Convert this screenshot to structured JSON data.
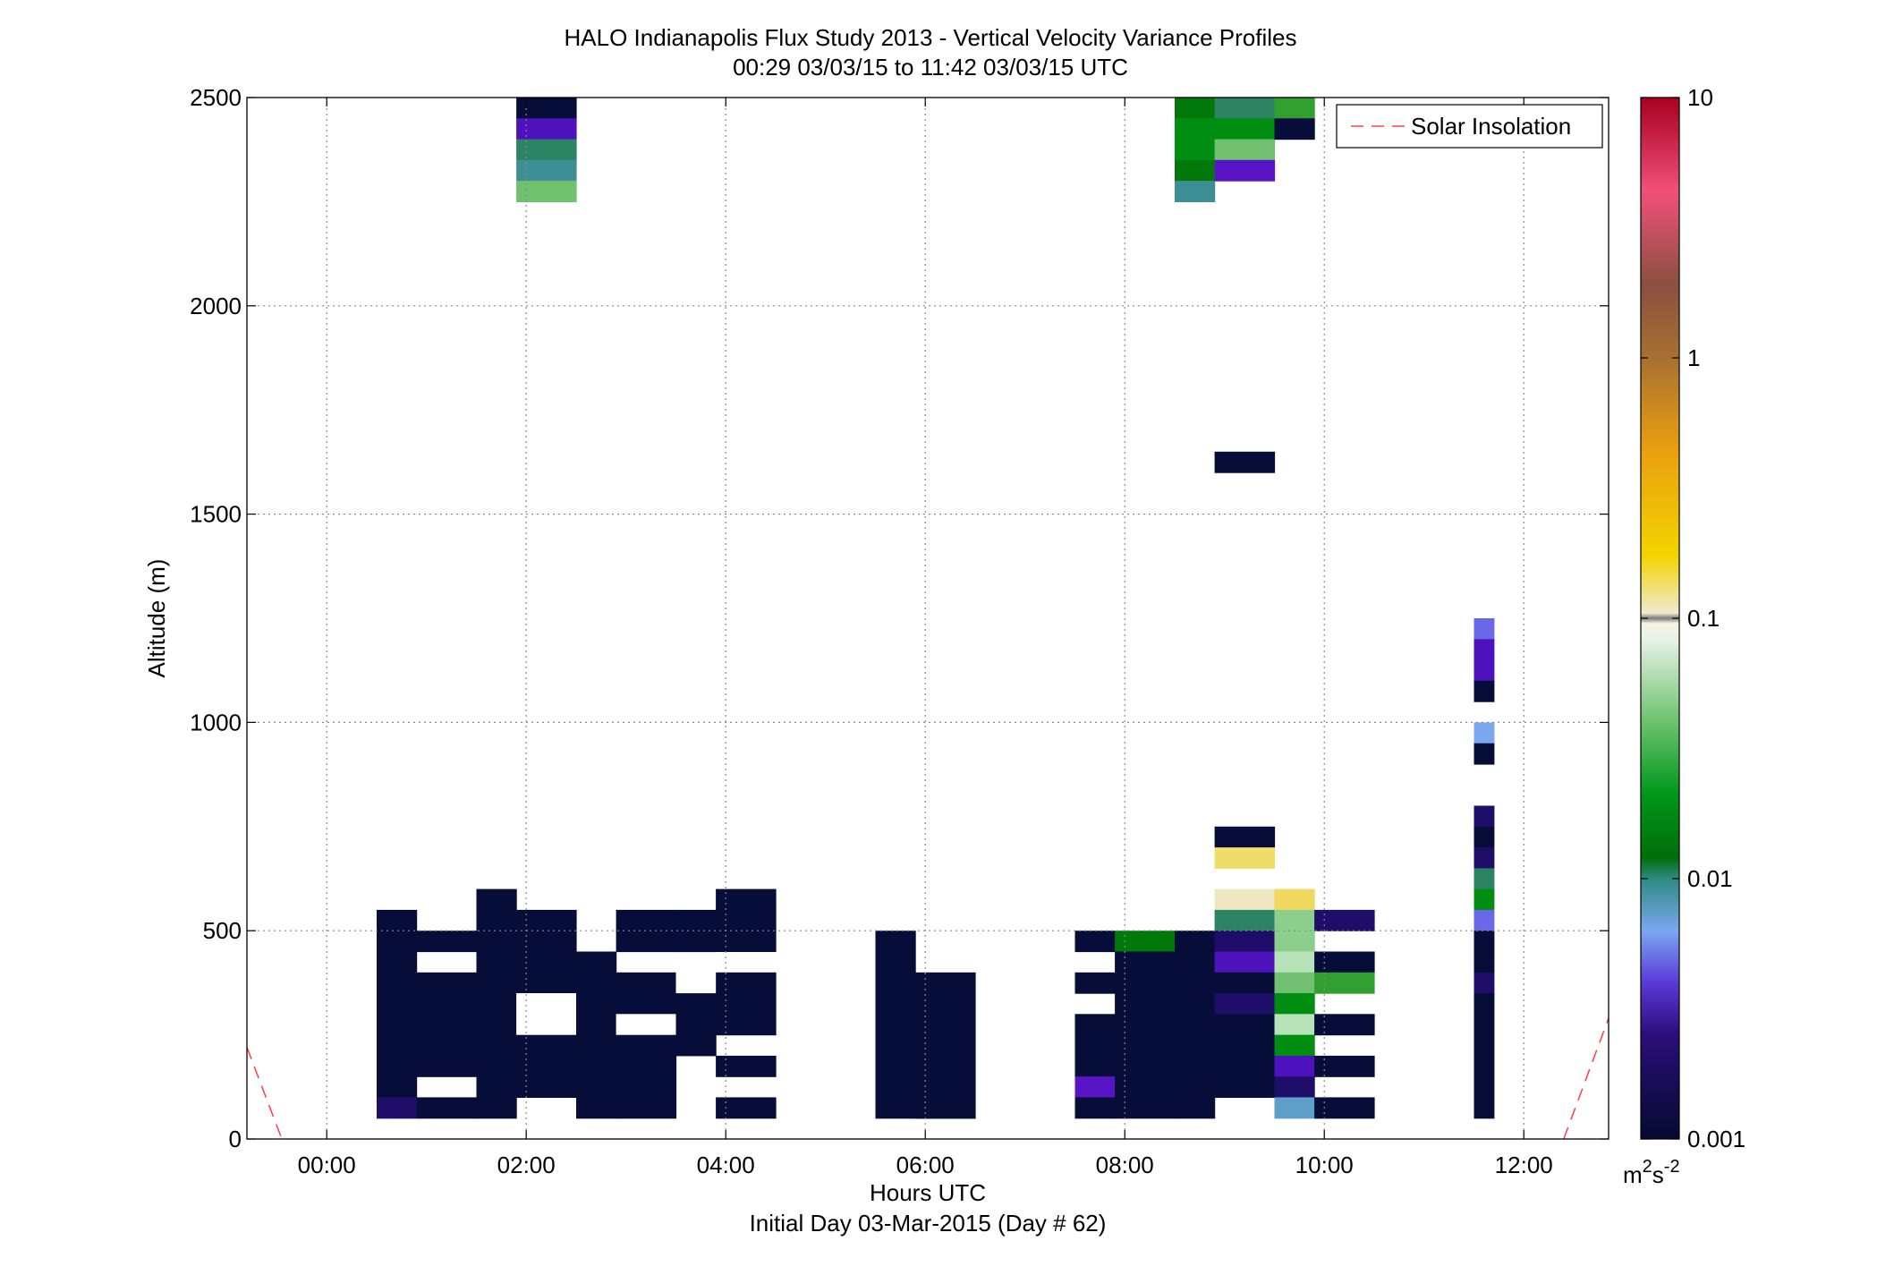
{
  "chart_data": {
    "type": "heatmap",
    "title": "HALO Indianapolis Flux Study 2013 - Vertical Velocity Variance Profiles",
    "subtitle": "00:29 03/03/15 to 11:42 03/03/15  UTC",
    "xlabel": "Hours UTC",
    "xlabel2": "Initial Day 03-Mar-2015 (Day # 62)",
    "ylabel": "Altitude (m)",
    "xlim": [
      -0.8,
      12.85
    ],
    "ylim": [
      0,
      2500
    ],
    "x_ticks": [
      {
        "value": 0,
        "label": "00:00"
      },
      {
        "value": 2,
        "label": "02:00"
      },
      {
        "value": 4,
        "label": "04:00"
      },
      {
        "value": 6,
        "label": "06:00"
      },
      {
        "value": 8,
        "label": "08:00"
      },
      {
        "value": 10,
        "label": "10:00"
      },
      {
        "value": 12,
        "label": "12:00"
      }
    ],
    "y_ticks": [
      {
        "value": 0,
        "label": "0"
      },
      {
        "value": 500,
        "label": "500"
      },
      {
        "value": 1000,
        "label": "1000"
      },
      {
        "value": 1500,
        "label": "1500"
      },
      {
        "value": 2000,
        "label": "2000"
      },
      {
        "value": 2500,
        "label": "2500"
      }
    ],
    "grid": true,
    "legend": {
      "position": "top-right",
      "entries": [
        {
          "name": "Solar Insolation",
          "color": "#ff4040",
          "style": "dashed"
        }
      ]
    },
    "colorbar": {
      "scale": "log",
      "range": [
        0.001,
        10
      ],
      "ticks": [
        {
          "value": 0.001,
          "label": "0.001"
        },
        {
          "value": 0.01,
          "label": "0.01"
        },
        {
          "value": 0.1,
          "label": "0.1"
        },
        {
          "value": 1,
          "label": "1"
        },
        {
          "value": 10,
          "label": "10"
        }
      ],
      "unit": "m",
      "unit_sup1": "2",
      "unit_mid": "s",
      "unit_sup2": "-2"
    },
    "cell_height_m": 50,
    "colors": {
      "navy": "#050d38",
      "indigo": "#1e0e6a",
      "violet": "#4e12bd",
      "purple": "#5a14c8",
      "periwinkle": "#6a68e8",
      "lightblue": "#7ba6f0",
      "steelblue": "#5e9ec8",
      "teal": "#3e8e96",
      "seagreen": "#2c8464",
      "darkgreen": "#00780a",
      "green": "#008e12",
      "midgreen": "#31a031",
      "lightgreen": "#70c070",
      "palegreen": "#8ccf8c",
      "mint": "#b8e2b8",
      "cream": "#eee8c0",
      "yellow": "#f0dc68",
      "gold": "#f0d860"
    },
    "cells": [
      {
        "x": [
          1.9,
          2.5
        ],
        "y": [
          2450,
          2500
        ],
        "c": "navy"
      },
      {
        "x": [
          1.9,
          2.5
        ],
        "y": [
          2400,
          2450
        ],
        "c": "violet"
      },
      {
        "x": [
          1.9,
          2.5
        ],
        "y": [
          2350,
          2400
        ],
        "c": "seagreen"
      },
      {
        "x": [
          1.9,
          2.5
        ],
        "y": [
          2300,
          2350
        ],
        "c": "teal"
      },
      {
        "x": [
          1.9,
          2.5
        ],
        "y": [
          2250,
          2300
        ],
        "c": "lightgreen"
      },
      {
        "x": [
          8.5,
          8.9
        ],
        "y": [
          2450,
          2500
        ],
        "c": "darkgreen"
      },
      {
        "x": [
          8.5,
          8.9
        ],
        "y": [
          2400,
          2450
        ],
        "c": "green"
      },
      {
        "x": [
          8.5,
          8.9
        ],
        "y": [
          2350,
          2400
        ],
        "c": "green"
      },
      {
        "x": [
          8.5,
          8.9
        ],
        "y": [
          2300,
          2350
        ],
        "c": "darkgreen"
      },
      {
        "x": [
          8.5,
          8.9
        ],
        "y": [
          2250,
          2300
        ],
        "c": "teal"
      },
      {
        "x": [
          8.9,
          9.5
        ],
        "y": [
          2450,
          2500
        ],
        "c": "seagreen"
      },
      {
        "x": [
          8.9,
          9.5
        ],
        "y": [
          2400,
          2450
        ],
        "c": "green"
      },
      {
        "x": [
          8.9,
          9.5
        ],
        "y": [
          2350,
          2400
        ],
        "c": "lightgreen"
      },
      {
        "x": [
          8.9,
          9.5
        ],
        "y": [
          2300,
          2350
        ],
        "c": "purple"
      },
      {
        "x": [
          9.5,
          9.9
        ],
        "y": [
          2450,
          2500
        ],
        "c": "midgreen"
      },
      {
        "x": [
          9.5,
          9.9
        ],
        "y": [
          2400,
          2450
        ],
        "c": "navy"
      },
      {
        "x": [
          8.9,
          9.5
        ],
        "y": [
          1600,
          1650
        ],
        "c": "navy"
      },
      {
        "x": [
          11.5,
          11.7
        ],
        "y": [
          1200,
          1250
        ],
        "c": "periwinkle"
      },
      {
        "x": [
          11.5,
          11.7
        ],
        "y": [
          1100,
          1200
        ],
        "c": "violet"
      },
      {
        "x": [
          11.5,
          11.7
        ],
        "y": [
          1050,
          1100
        ],
        "c": "navy"
      },
      {
        "x": [
          11.5,
          11.7
        ],
        "y": [
          950,
          1000
        ],
        "c": "lightblue"
      },
      {
        "x": [
          11.5,
          11.7
        ],
        "y": [
          900,
          950
        ],
        "c": "navy"
      },
      {
        "x": [
          11.5,
          11.7
        ],
        "y": [
          750,
          800
        ],
        "c": "indigo"
      },
      {
        "x": [
          11.5,
          11.7
        ],
        "y": [
          700,
          750
        ],
        "c": "navy"
      },
      {
        "x": [
          11.5,
          11.7
        ],
        "y": [
          650,
          700
        ],
        "c": "indigo"
      },
      {
        "x": [
          11.5,
          11.7
        ],
        "y": [
          600,
          650
        ],
        "c": "seagreen"
      },
      {
        "x": [
          11.5,
          11.7
        ],
        "y": [
          550,
          600
        ],
        "c": "green"
      },
      {
        "x": [
          11.5,
          11.7
        ],
        "y": [
          500,
          550
        ],
        "c": "periwinkle"
      },
      {
        "x": [
          11.5,
          11.7
        ],
        "y": [
          400,
          500
        ],
        "c": "navy"
      },
      {
        "x": [
          11.5,
          11.7
        ],
        "y": [
          350,
          400
        ],
        "c": "indigo"
      },
      {
        "x": [
          11.5,
          11.7
        ],
        "y": [
          50,
          350
        ],
        "c": "navy"
      },
      {
        "x": [
          0.5,
          0.9
        ],
        "y": [
          100,
          550
        ],
        "c": "navy"
      },
      {
        "x": [
          0.5,
          0.9
        ],
        "y": [
          50,
          100
        ],
        "c": "indigo"
      },
      {
        "x": [
          0.9,
          1.5
        ],
        "y": [
          450,
          500
        ],
        "c": "navy"
      },
      {
        "x": [
          0.9,
          1.5
        ],
        "y": [
          150,
          400
        ],
        "c": "navy"
      },
      {
        "x": [
          0.9,
          1.5
        ],
        "y": [
          50,
          100
        ],
        "c": "navy"
      },
      {
        "x": [
          1.5,
          1.9
        ],
        "y": [
          50,
          600
        ],
        "c": "navy"
      },
      {
        "x": [
          1.9,
          2.5
        ],
        "y": [
          350,
          550
        ],
        "c": "navy"
      },
      {
        "x": [
          1.9,
          2.5
        ],
        "y": [
          100,
          250
        ],
        "c": "navy"
      },
      {
        "x": [
          2.5,
          2.9
        ],
        "y": [
          50,
          450
        ],
        "c": "navy"
      },
      {
        "x": [
          2.9,
          3.5
        ],
        "y": [
          450,
          550
        ],
        "c": "navy"
      },
      {
        "x": [
          2.9,
          3.5
        ],
        "y": [
          300,
          400
        ],
        "c": "navy"
      },
      {
        "x": [
          2.9,
          3.5
        ],
        "y": [
          50,
          250
        ],
        "c": "navy"
      },
      {
        "x": [
          3.5,
          3.9
        ],
        "y": [
          450,
          550
        ],
        "c": "navy"
      },
      {
        "x": [
          3.5,
          3.9
        ],
        "y": [
          200,
          350
        ],
        "c": "navy"
      },
      {
        "x": [
          3.9,
          4.5
        ],
        "y": [
          450,
          600
        ],
        "c": "navy"
      },
      {
        "x": [
          3.9,
          4.5
        ],
        "y": [
          250,
          400
        ],
        "c": "navy"
      },
      {
        "x": [
          3.9,
          4.5
        ],
        "y": [
          150,
          200
        ],
        "c": "navy"
      },
      {
        "x": [
          3.9,
          4.5
        ],
        "y": [
          50,
          100
        ],
        "c": "navy"
      },
      {
        "x": [
          5.5,
          5.9
        ],
        "y": [
          50,
          500
        ],
        "c": "navy"
      },
      {
        "x": [
          5.9,
          6.5
        ],
        "y": [
          50,
          400
        ],
        "c": "navy"
      },
      {
        "x": [
          7.5,
          7.9
        ],
        "y": [
          450,
          500
        ],
        "c": "navy"
      },
      {
        "x": [
          7.5,
          7.9
        ],
        "y": [
          350,
          400
        ],
        "c": "navy"
      },
      {
        "x": [
          7.5,
          7.9
        ],
        "y": [
          150,
          300
        ],
        "c": "navy"
      },
      {
        "x": [
          7.5,
          7.9
        ],
        "y": [
          100,
          150
        ],
        "c": "purple"
      },
      {
        "x": [
          7.5,
          7.9
        ],
        "y": [
          50,
          100
        ],
        "c": "navy"
      },
      {
        "x": [
          7.9,
          8.5
        ],
        "y": [
          450,
          500
        ],
        "c": "darkgreen"
      },
      {
        "x": [
          7.9,
          8.5
        ],
        "y": [
          50,
          450
        ],
        "c": "navy"
      },
      {
        "x": [
          8.5,
          8.9
        ],
        "y": [
          50,
          500
        ],
        "c": "navy"
      },
      {
        "x": [
          8.9,
          9.5
        ],
        "y": [
          700,
          750
        ],
        "c": "navy"
      },
      {
        "x": [
          8.9,
          9.5
        ],
        "y": [
          650,
          700
        ],
        "c": "yellow"
      },
      {
        "x": [
          8.9,
          9.5
        ],
        "y": [
          550,
          600
        ],
        "c": "cream"
      },
      {
        "x": [
          8.9,
          9.5
        ],
        "y": [
          500,
          550
        ],
        "c": "seagreen"
      },
      {
        "x": [
          8.9,
          9.5
        ],
        "y": [
          450,
          500
        ],
        "c": "indigo"
      },
      {
        "x": [
          8.9,
          9.5
        ],
        "y": [
          400,
          450
        ],
        "c": "violet"
      },
      {
        "x": [
          8.9,
          9.5
        ],
        "y": [
          350,
          400
        ],
        "c": "navy"
      },
      {
        "x": [
          8.9,
          9.5
        ],
        "y": [
          300,
          350
        ],
        "c": "indigo"
      },
      {
        "x": [
          8.9,
          9.5
        ],
        "y": [
          100,
          300
        ],
        "c": "navy"
      },
      {
        "x": [
          9.5,
          9.9
        ],
        "y": [
          550,
          600
        ],
        "c": "gold"
      },
      {
        "x": [
          9.5,
          9.9
        ],
        "y": [
          450,
          550
        ],
        "c": "palegreen"
      },
      {
        "x": [
          9.5,
          9.9
        ],
        "y": [
          400,
          450
        ],
        "c": "mint"
      },
      {
        "x": [
          9.5,
          9.9
        ],
        "y": [
          350,
          400
        ],
        "c": "lightgreen"
      },
      {
        "x": [
          9.5,
          9.9
        ],
        "y": [
          300,
          350
        ],
        "c": "green"
      },
      {
        "x": [
          9.5,
          9.9
        ],
        "y": [
          250,
          300
        ],
        "c": "mint"
      },
      {
        "x": [
          9.5,
          9.9
        ],
        "y": [
          200,
          250
        ],
        "c": "green"
      },
      {
        "x": [
          9.5,
          9.9
        ],
        "y": [
          150,
          200
        ],
        "c": "violet"
      },
      {
        "x": [
          9.5,
          9.9
        ],
        "y": [
          100,
          150
        ],
        "c": "indigo"
      },
      {
        "x": [
          9.5,
          9.9
        ],
        "y": [
          50,
          100
        ],
        "c": "steelblue"
      },
      {
        "x": [
          9.9,
          10.5
        ],
        "y": [
          500,
          550
        ],
        "c": "indigo"
      },
      {
        "x": [
          9.9,
          10.5
        ],
        "y": [
          400,
          450
        ],
        "c": "navy"
      },
      {
        "x": [
          9.9,
          10.5
        ],
        "y": [
          350,
          400
        ],
        "c": "midgreen"
      },
      {
        "x": [
          9.9,
          10.5
        ],
        "y": [
          250,
          300
        ],
        "c": "navy"
      },
      {
        "x": [
          9.9,
          10.5
        ],
        "y": [
          150,
          200
        ],
        "c": "navy"
      },
      {
        "x": [
          9.9,
          10.5
        ],
        "y": [
          50,
          100
        ],
        "c": "navy"
      }
    ],
    "white_cells": [
      {
        "x": [
          1.9,
          2.5
        ],
        "y": [
          250,
          350
        ]
      },
      {
        "x": [
          2.9,
          3.5
        ],
        "y": [
          250,
          300
        ]
      },
      {
        "x": [
          3.5,
          3.9
        ],
        "y": [
          350,
          400
        ]
      }
    ],
    "solar_insolation": [
      {
        "x": [
          -0.8,
          -0.45
        ],
        "y": [
          220,
          0
        ]
      },
      {
        "x": [
          12.4,
          12.85
        ],
        "y": [
          0,
          290
        ]
      }
    ]
  }
}
